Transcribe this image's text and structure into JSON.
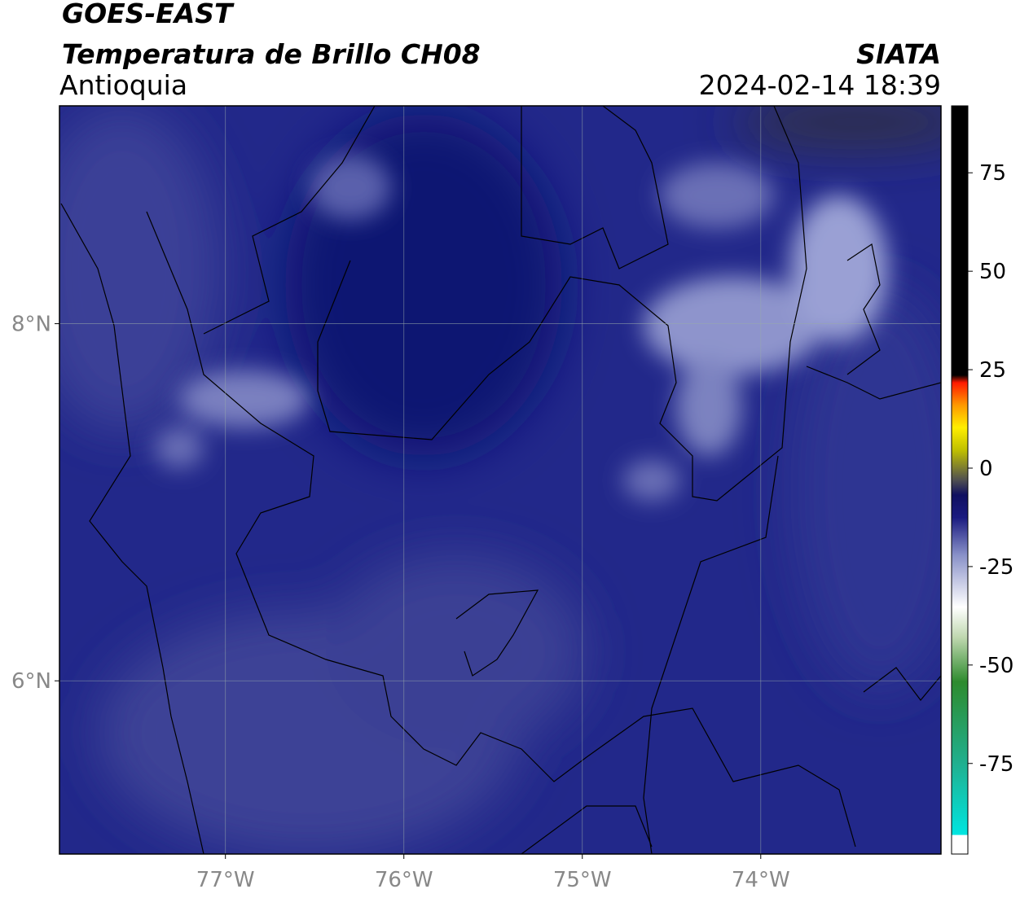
{
  "header": {
    "title": "GOES-EAST",
    "product": "Temperatura de Brillo CH08",
    "region": "Antioquia",
    "source": "SIATA",
    "datetime": "2024-02-14 18:39"
  },
  "map": {
    "xlim": [
      -77.93,
      -72.99
    ],
    "ylim": [
      5.03,
      9.22
    ],
    "xticks": [
      {
        "value": -77,
        "label": "77°W"
      },
      {
        "value": -76,
        "label": "76°W"
      },
      {
        "value": -75,
        "label": "75°W"
      },
      {
        "value": -74,
        "label": "74°W"
      }
    ],
    "yticks": [
      {
        "value": 6,
        "label": "6°N"
      },
      {
        "value": 8,
        "label": "8°N"
      }
    ],
    "grid": true
  },
  "colorbar": {
    "lim": [
      -98,
      92
    ],
    "ticks": [
      -75,
      -50,
      -25,
      0,
      25,
      50,
      75
    ]
  }
}
